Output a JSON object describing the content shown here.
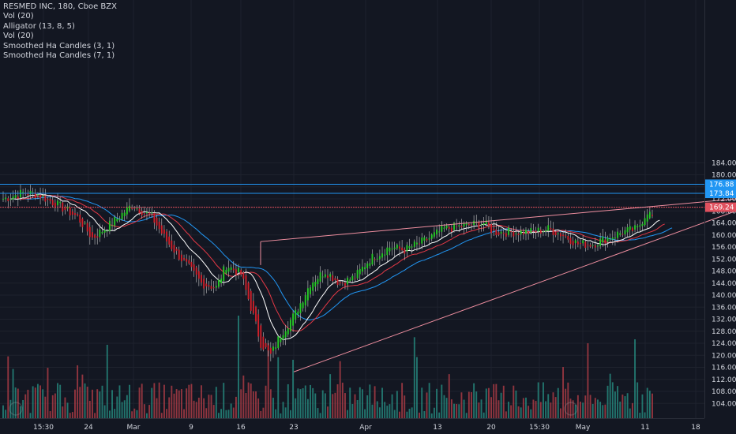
{
  "header": {
    "lines": [
      "RESMED INC, 180, Cboe BZX",
      "Vol (20)",
      "Alligator (13, 8, 5)",
      "Vol (20)",
      "Smoothed Ha Candles (3, 1)",
      "Smoothed Ha Candles (7, 1)"
    ]
  },
  "colors": {
    "background": "#131722",
    "grid": "#1e222d",
    "up": "#26c926",
    "down": "#d0202a",
    "vol_up": "#26867b",
    "vol_down": "#a83b44",
    "jaw": "#2196f3",
    "teeth": "#e53946",
    "lips": "#ffffff",
    "trend": "#f08fa0",
    "hline_blue": "#2196f3",
    "hline_red": "#e0505e"
  },
  "chart_data": {
    "type": "candlestick",
    "symbol": "RESMED INC",
    "interval": "180",
    "exchange": "Cboe BZX",
    "ylim": [
      102,
      186
    ],
    "yticks": [
      104,
      108,
      112,
      116,
      120,
      124,
      128,
      132,
      136,
      140,
      144,
      148,
      152,
      156,
      160,
      164,
      168,
      172,
      176,
      180,
      184
    ],
    "ytick_labels": [
      "104.00",
      "108.00",
      "112.00",
      "116.00",
      "120.00",
      "124.00",
      "128.00",
      "132.00",
      "136.00",
      "140.00",
      "144.00",
      "148.00",
      "152.00",
      "156.00",
      "160.00",
      "164.00",
      "168.00",
      "172.00",
      "176.00",
      "180.00",
      "184.00"
    ],
    "xtick_labels": [
      "15:30",
      "24",
      "Mar",
      "9",
      "16",
      "23",
      "Apr",
      "13",
      "20",
      "15:30",
      "May",
      "11",
      "18"
    ],
    "price_tags": [
      {
        "label": "176.88",
        "value": 176.88,
        "color": "#2196f3"
      },
      {
        "label": "173.84",
        "value": 173.84,
        "color": "#2196f3"
      },
      {
        "label": "169.24",
        "value": 169.24,
        "color": "#e0505e"
      }
    ],
    "close_anchor": [
      [
        0,
        172
      ],
      [
        8,
        174
      ],
      [
        14,
        173.5
      ],
      [
        22,
        170
      ],
      [
        30,
        166
      ],
      [
        36,
        159
      ],
      [
        44,
        164
      ],
      [
        52,
        170
      ],
      [
        60,
        166
      ],
      [
        66,
        158
      ],
      [
        74,
        150
      ],
      [
        80,
        144
      ],
      [
        86,
        142.5
      ],
      [
        90,
        150
      ],
      [
        96,
        147
      ],
      [
        100,
        136
      ],
      [
        104,
        124
      ],
      [
        108,
        120
      ],
      [
        112,
        127
      ],
      [
        118,
        134
      ],
      [
        124,
        144
      ],
      [
        130,
        148
      ],
      [
        136,
        144
      ],
      [
        142,
        146
      ],
      [
        148,
        152
      ],
      [
        156,
        156
      ],
      [
        162,
        155
      ],
      [
        170,
        158
      ],
      [
        178,
        162
      ],
      [
        186,
        163
      ],
      [
        194,
        164
      ],
      [
        198,
        161
      ],
      [
        206,
        161
      ],
      [
        214,
        161
      ],
      [
        220,
        162
      ],
      [
        226,
        160
      ],
      [
        232,
        157
      ],
      [
        238,
        157
      ],
      [
        244,
        159
      ],
      [
        250,
        161
      ],
      [
        256,
        162
      ],
      [
        260,
        168
      ],
      [
        262,
        166
      ]
    ],
    "trendlines": [
      {
        "name": "upper",
        "from": [
          330,
          157.8
        ],
        "to": [
          932,
          172
        ]
      },
      {
        "name": "lower",
        "from": [
          372,
          114.5
        ],
        "to": [
          932,
          168
        ]
      }
    ]
  }
}
